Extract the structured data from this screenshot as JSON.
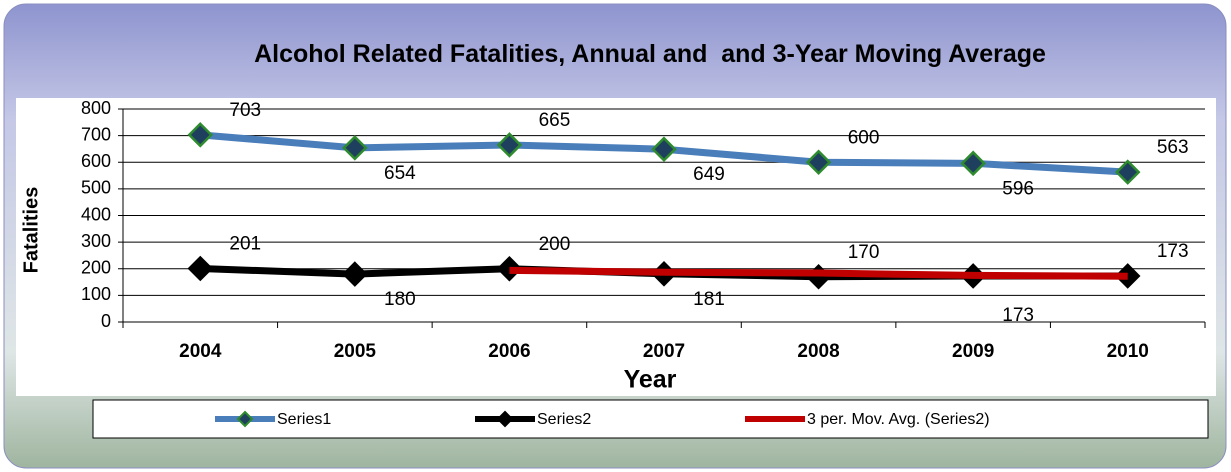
{
  "chart_data": {
    "type": "line",
    "title": "Alcohol Related Fatalities, Annual and  and 3-Year Moving Average",
    "x_label": "Year",
    "y_label": "Fatalities",
    "categories": [
      "2004",
      "2005",
      "2006",
      "2007",
      "2008",
      "2009",
      "2010"
    ],
    "series": [
      {
        "name": "Series1",
        "color": "#4a7ebb",
        "marker_color": "#2e8b2e",
        "values": [
          703,
          654,
          665,
          649,
          600,
          596,
          563
        ]
      },
      {
        "name": "Series2",
        "color": "#000000",
        "marker_color": "#000000",
        "values": [
          201,
          180,
          200,
          181,
          170,
          173,
          173
        ]
      },
      {
        "name": "3 per. Mov. Avg. (Series2)",
        "color": "#c00000",
        "values": [
          null,
          null,
          194,
          187,
          184,
          175,
          172
        ]
      }
    ],
    "ylim": [
      0,
      800
    ],
    "yticks": [
      0,
      100,
      200,
      300,
      400,
      500,
      600,
      700,
      800
    ],
    "grid": true,
    "legend": "bottom"
  }
}
